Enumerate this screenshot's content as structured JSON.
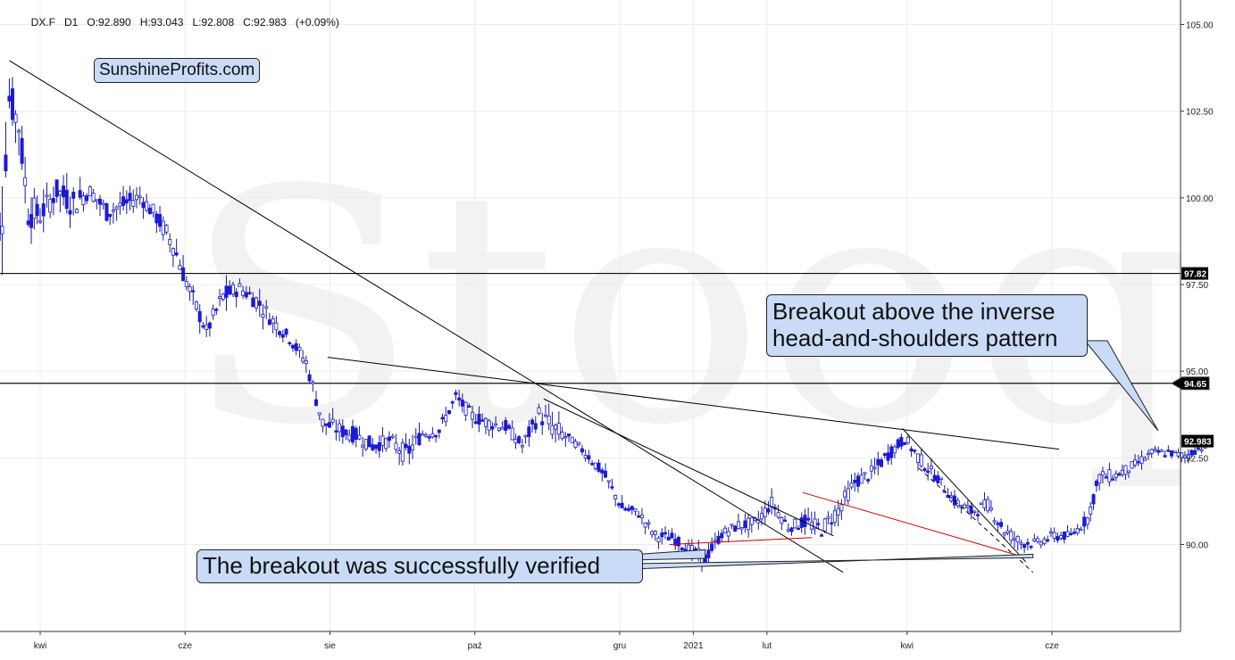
{
  "header": {
    "symbol": "DX.F",
    "interval": "D1",
    "open": "O:92.890",
    "high": "H:93.043",
    "low": "L:92.808",
    "close": "C:92.983",
    "change": "(+0.09%)"
  },
  "watermark": "Stooq",
  "brand": "SunshineProfits.com",
  "annotations": {
    "breakout": "Breakout above the inverse head-and-shoulders pattern",
    "verified": "The breakout was successfully verified"
  },
  "chart_data": {
    "type": "candlestick",
    "title": "",
    "xlabel": "",
    "ylabel": "",
    "x_tick_labels": [
      "kwi",
      "cze",
      "sie",
      "paź",
      "gru",
      "2021",
      "lut",
      "kwi",
      "cze"
    ],
    "y_tick_labels": [
      "105.00",
      "102.50",
      "100.00",
      "97.50",
      "95.00",
      "92.50",
      "90.00"
    ],
    "ylim": [
      87.2,
      105.6
    ],
    "grid": true,
    "price_tags": [
      {
        "label": "97.82",
        "value": 97.82,
        "style": "black"
      },
      {
        "label": "94.65",
        "value": 94.65,
        "style": "black-rounded"
      },
      {
        "label": "92.983",
        "value": 92.983,
        "style": "black"
      }
    ],
    "horizontal_levels": [
      97.82,
      94.65
    ],
    "trendlines": [
      {
        "from": [
          "2020-03-19",
          103.96
        ],
        "to": [
          "2021-03-05",
          89.2
        ],
        "color": "#000000"
      },
      {
        "from": [
          "2020-07-31",
          95.4
        ],
        "to": [
          "2021-06-04",
          92.75
        ],
        "color": "#000000"
      },
      {
        "from": [
          "2020-10-30",
          94.2
        ],
        "to": [
          "2021-03-01",
          90.25
        ],
        "color": "#000000"
      },
      {
        "from": [
          "2021-03-30",
          93.35
        ],
        "to": [
          "2021-05-21",
          89.5
        ],
        "color": "#000000"
      },
      {
        "from": [
          "2021-02-16",
          91.5
        ],
        "to": [
          "2021-05-17",
          89.7
        ],
        "color": "#cc0000"
      },
      {
        "from": [
          "2020-12-22",
          90.0
        ],
        "to": [
          "2021-02-20",
          90.2
        ],
        "color": "#cc0000"
      }
    ],
    "series": [
      {
        "name": "",
        "type": "ohlc-approx",
        "points": [
          [
            "2020-03-09",
            96.8,
            98.2
          ],
          [
            "2020-03-16",
            98.0,
            101.5
          ],
          [
            "2020-03-19",
            101.8,
            103.96
          ],
          [
            "2020-03-23",
            101.0,
            103.2
          ],
          [
            "2020-03-27",
            98.5,
            100.8
          ],
          [
            "2020-04-01",
            98.8,
            100.2
          ],
          [
            "2020-04-08",
            99.5,
            100.9
          ],
          [
            "2020-04-15",
            99.0,
            100.7
          ],
          [
            "2020-04-22",
            99.8,
            100.6
          ],
          [
            "2020-04-29",
            99.0,
            100.2
          ],
          [
            "2020-05-06",
            99.3,
            100.3
          ],
          [
            "2020-05-13",
            99.6,
            100.5
          ],
          [
            "2020-05-20",
            98.9,
            100.0
          ],
          [
            "2020-05-27",
            98.0,
            99.3
          ],
          [
            "2020-06-03",
            96.7,
            97.9
          ],
          [
            "2020-06-10",
            95.7,
            96.6
          ],
          [
            "2020-06-17",
            96.5,
            97.8
          ],
          [
            "2020-06-24",
            97.0,
            97.8
          ],
          [
            "2020-07-01",
            96.5,
            97.6
          ],
          [
            "2020-07-08",
            96.0,
            96.9
          ],
          [
            "2020-07-15",
            95.6,
            96.3
          ],
          [
            "2020-07-22",
            94.8,
            95.7
          ],
          [
            "2020-07-29",
            93.0,
            94.0
          ],
          [
            "2020-08-05",
            92.8,
            93.8
          ],
          [
            "2020-08-12",
            92.7,
            93.6
          ],
          [
            "2020-08-19",
            92.4,
            93.3
          ],
          [
            "2020-08-26",
            92.6,
            93.4
          ],
          [
            "2020-09-02",
            92.0,
            93.2
          ],
          [
            "2020-09-09",
            92.8,
            93.6
          ],
          [
            "2020-09-16",
            92.9,
            93.7
          ],
          [
            "2020-09-23",
            93.9,
            94.6
          ],
          [
            "2020-09-30",
            93.3,
            94.1
          ],
          [
            "2020-10-07",
            93.1,
            93.9
          ],
          [
            "2020-10-14",
            93.0,
            93.8
          ],
          [
            "2020-10-21",
            92.5,
            93.2
          ],
          [
            "2020-10-28",
            93.2,
            94.3
          ],
          [
            "2020-11-04",
            92.6,
            94.0
          ],
          [
            "2020-11-11",
            92.8,
            93.2
          ],
          [
            "2020-11-18",
            92.2,
            92.9
          ],
          [
            "2020-11-25",
            91.6,
            92.3
          ],
          [
            "2020-12-02",
            90.7,
            91.4
          ],
          [
            "2020-12-09",
            90.6,
            91.2
          ],
          [
            "2020-12-16",
            89.9,
            90.6
          ],
          [
            "2020-12-23",
            89.9,
            90.5
          ],
          [
            "2020-12-30",
            89.5,
            90.2
          ],
          [
            "2021-01-06",
            89.2,
            90.0
          ],
          [
            "2021-01-13",
            90.0,
            90.6
          ],
          [
            "2021-01-20",
            90.2,
            90.9
          ],
          [
            "2021-01-27",
            90.2,
            91.0
          ],
          [
            "2021-02-03",
            90.8,
            91.6
          ],
          [
            "2021-02-10",
            90.2,
            90.8
          ],
          [
            "2021-02-17",
            90.2,
            91.1
          ],
          [
            "2021-02-24",
            90.0,
            90.9
          ],
          [
            "2021-03-03",
            90.5,
            91.5
          ],
          [
            "2021-03-10",
            91.4,
            92.2
          ],
          [
            "2021-03-17",
            91.6,
            92.5
          ],
          [
            "2021-03-24",
            92.2,
            93.0
          ],
          [
            "2021-03-31",
            92.7,
            93.4
          ],
          [
            "2021-04-07",
            92.0,
            92.8
          ],
          [
            "2021-04-14",
            91.6,
            92.2
          ],
          [
            "2021-04-21",
            90.9,
            91.6
          ],
          [
            "2021-04-28",
            90.6,
            91.3
          ],
          [
            "2021-05-05",
            90.8,
            91.5
          ],
          [
            "2021-05-12",
            90.0,
            90.8
          ],
          [
            "2021-05-19",
            89.7,
            90.4
          ],
          [
            "2021-05-26",
            89.8,
            90.3
          ],
          [
            "2021-06-02",
            89.9,
            90.6
          ],
          [
            "2021-06-09",
            90.0,
            90.5
          ],
          [
            "2021-06-16",
            90.4,
            91.1
          ],
          [
            "2021-06-21",
            91.5,
            92.4
          ],
          [
            "2021-06-28",
            91.7,
            92.3
          ],
          [
            "2021-07-06",
            92.0,
            92.6
          ],
          [
            "2021-07-13",
            92.4,
            92.9
          ],
          [
            "2021-07-20",
            92.4,
            92.9
          ],
          [
            "2021-07-27",
            92.3,
            92.8
          ],
          [
            "2021-08-03",
            92.6,
            93.0
          ],
          [
            "2021-08-06",
            92.8,
            93.04
          ]
        ]
      }
    ]
  }
}
